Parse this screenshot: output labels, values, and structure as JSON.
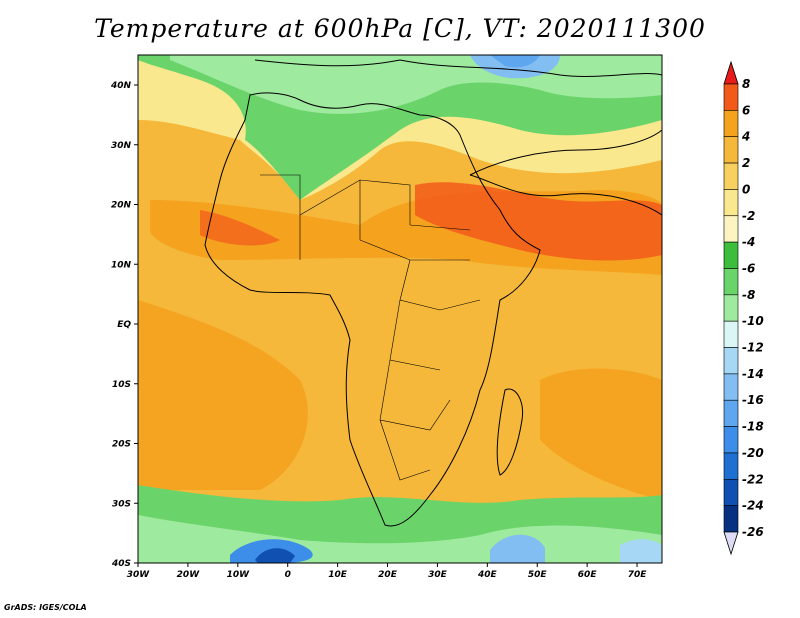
{
  "title": "Temperature at 600hPa [C], VT: 2020111300",
  "credit": "GrADS: IGES/COLA",
  "axes": {
    "x_ticks": [
      "30W",
      "20W",
      "10W",
      "0",
      "10E",
      "20E",
      "30E",
      "40E",
      "50E",
      "60E",
      "70E"
    ],
    "y_ticks": [
      "40N",
      "30N",
      "20N",
      "10N",
      "EQ",
      "10S",
      "20S",
      "30S",
      "40S"
    ]
  },
  "colorbar": {
    "labels": [
      "8",
      "6",
      "4",
      "2",
      "0",
      "-2",
      "-4",
      "-6",
      "-8",
      "-10",
      "-12",
      "-14",
      "-16",
      "-18",
      "-20",
      "-22",
      "-24",
      "-26"
    ],
    "colors": [
      "#e81a1a",
      "#f25a1a",
      "#f5a21f",
      "#f5b83a",
      "#f7d060",
      "#fae88e",
      "#fcf5c2",
      "#3cbe3c",
      "#6ad46a",
      "#9eea9e",
      "#dcf6f6",
      "#a6d8f6",
      "#82bef2",
      "#5ea6ee",
      "#3c8ee8",
      "#2070d2",
      "#1050b0",
      "#083080"
    ]
  }
}
